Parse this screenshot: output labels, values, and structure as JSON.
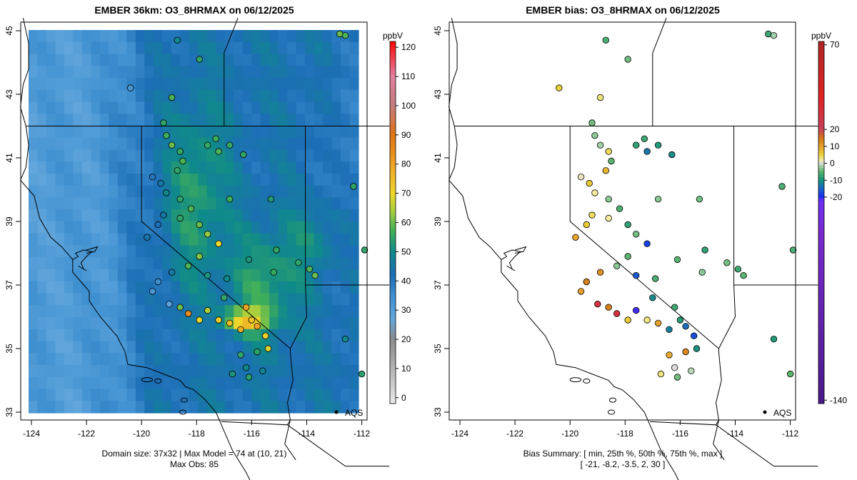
{
  "chart_data": [
    {
      "type": "map",
      "title": "EMBER 36km: O3_8HRMAX on 06/12/2025",
      "xticks": [
        "-124",
        "-122",
        "-120",
        "-118",
        "-116",
        "-114",
        "-112"
      ],
      "yticks": [
        "33",
        "35",
        "37",
        "39",
        "41",
        "43",
        "45"
      ],
      "xlim": [
        -124.3,
        -111.7
      ],
      "ylim": [
        32.8,
        45.3
      ],
      "colorbar": {
        "unit": "ppbV",
        "range": [
          -2,
          122
        ],
        "ticks": [
          "0",
          "10",
          "20",
          "30",
          "40",
          "50",
          "60",
          "70",
          "80",
          "90",
          "100",
          "110",
          "120"
        ]
      },
      "footer": [
        "Domain size: 37x32 | Max Model = 74 at (10, 21)",
        "Max Obs: 85"
      ],
      "domain_size": "37x32",
      "max_model": 74,
      "max_model_cell": [
        10,
        21
      ],
      "max_obs": 85,
      "aqs_label": "AQS",
      "obs_sites": [
        {
          "lon": -118.7,
          "lat": 44.7,
          "v": 50
        },
        {
          "lon": -117.9,
          "lat": 44.1,
          "v": 55
        },
        {
          "lon": -120.4,
          "lat": 43.2,
          "v": 32
        },
        {
          "lon": -119.2,
          "lat": 42.1,
          "v": 55
        },
        {
          "lon": -118.9,
          "lat": 42.9,
          "v": 58
        },
        {
          "lon": -119.1,
          "lat": 41.7,
          "v": 57
        },
        {
          "lon": -118.9,
          "lat": 41.4,
          "v": 60
        },
        {
          "lon": -118.6,
          "lat": 41.2,
          "v": 56
        },
        {
          "lon": -118.5,
          "lat": 40.9,
          "v": 58
        },
        {
          "lon": -118.7,
          "lat": 40.6,
          "v": 55
        },
        {
          "lon": -119.6,
          "lat": 40.4,
          "v": 40
        },
        {
          "lon": -119.3,
          "lat": 40.2,
          "v": 45
        },
        {
          "lon": -119.1,
          "lat": 39.9,
          "v": 50
        },
        {
          "lon": -118.6,
          "lat": 39.7,
          "v": 55
        },
        {
          "lon": -118.2,
          "lat": 39.4,
          "v": 58
        },
        {
          "lon": -117.9,
          "lat": 38.9,
          "v": 60
        },
        {
          "lon": -117.6,
          "lat": 38.6,
          "v": 63
        },
        {
          "lon": -117.2,
          "lat": 38.3,
          "v": 70
        },
        {
          "lon": -117.9,
          "lat": 37.9,
          "v": 62
        },
        {
          "lon": -118.3,
          "lat": 37.6,
          "v": 58
        },
        {
          "lon": -118.9,
          "lat": 37.4,
          "v": 45
        },
        {
          "lon": -119.4,
          "lat": 37.1,
          "v": 35
        },
        {
          "lon": -119.6,
          "lat": 36.8,
          "v": 32
        },
        {
          "lon": -119.0,
          "lat": 36.4,
          "v": 28
        },
        {
          "lon": -118.6,
          "lat": 36.3,
          "v": 60
        },
        {
          "lon": -118.3,
          "lat": 36.1,
          "v": 85
        },
        {
          "lon": -117.9,
          "lat": 35.9,
          "v": 70
        },
        {
          "lon": -117.6,
          "lat": 36.2,
          "v": 65
        },
        {
          "lon": -117.2,
          "lat": 35.9,
          "v": 72
        },
        {
          "lon": -116.8,
          "lat": 35.8,
          "v": 75
        },
        {
          "lon": -116.4,
          "lat": 35.6,
          "v": 78
        },
        {
          "lon": -116.0,
          "lat": 35.9,
          "v": 74
        },
        {
          "lon": -115.8,
          "lat": 35.7,
          "v": 80
        },
        {
          "lon": -115.5,
          "lat": 35.4,
          "v": 72
        },
        {
          "lon": -115.4,
          "lat": 35.0,
          "v": 68
        },
        {
          "lon": -115.8,
          "lat": 34.9,
          "v": 55
        },
        {
          "lon": -116.4,
          "lat": 34.8,
          "v": 55
        },
        {
          "lon": -116.2,
          "lat": 34.4,
          "v": 50
        },
        {
          "lon": -115.6,
          "lat": 34.3,
          "v": 48
        },
        {
          "lon": -116.7,
          "lat": 34.2,
          "v": 52
        },
        {
          "lon": -116.1,
          "lat": 34.1,
          "v": 54
        },
        {
          "lon": -116.2,
          "lat": 36.3,
          "v": 80
        },
        {
          "lon": -117.0,
          "lat": 36.6,
          "v": 55
        },
        {
          "lon": -116.9,
          "lat": 37.2,
          "v": 50
        },
        {
          "lon": -116.1,
          "lat": 37.8,
          "v": 52
        },
        {
          "lon": -117.6,
          "lat": 37.3,
          "v": 52
        },
        {
          "lon": -117.3,
          "lat": 41.6,
          "v": 57
        },
        {
          "lon": -117.2,
          "lat": 41.2,
          "v": 58
        },
        {
          "lon": -117.6,
          "lat": 41.4,
          "v": 56
        },
        {
          "lon": -116.8,
          "lat": 41.4,
          "v": 56
        },
        {
          "lon": -116.3,
          "lat": 41.1,
          "v": 55
        },
        {
          "lon": -115.2,
          "lat": 37.4,
          "v": 56
        },
        {
          "lon": -113.9,
          "lat": 37.5,
          "v": 58
        },
        {
          "lon": -113.7,
          "lat": 37.3,
          "v": 60
        },
        {
          "lon": -114.3,
          "lat": 37.7,
          "v": 55
        },
        {
          "lon": -112.8,
          "lat": 44.9,
          "v": 60
        },
        {
          "lon": -112.6,
          "lat": 44.85,
          "v": 58
        },
        {
          "lon": -112.3,
          "lat": 40.1,
          "v": 55
        },
        {
          "lon": -111.9,
          "lat": 38.1,
          "v": 55
        },
        {
          "lon": -112.0,
          "lat": 34.2,
          "v": 54
        },
        {
          "lon": -112.6,
          "lat": 35.3,
          "v": 50
        },
        {
          "lon": -119.8,
          "lat": 38.5,
          "v": 44
        },
        {
          "lon": -119.4,
          "lat": 38.9,
          "v": 42
        },
        {
          "lon": -119.2,
          "lat": 39.2,
          "v": 45
        },
        {
          "lon": -115.1,
          "lat": 38.1,
          "v": 55
        },
        {
          "lon": -118.6,
          "lat": 39.1,
          "v": 55
        },
        {
          "lon": -116.8,
          "lat": 39.7,
          "v": 57
        },
        {
          "lon": -115.3,
          "lat": 39.7,
          "v": 53
        }
      ]
    },
    {
      "type": "map",
      "title": "EMBER bias: O3_8HRMAX on 06/12/2025",
      "xticks": [
        "-124",
        "-122",
        "-120",
        "-118",
        "-116",
        "-114",
        "-112"
      ],
      "yticks": [
        "33",
        "35",
        "37",
        "39",
        "41",
        "43",
        "45"
      ],
      "xlim": [
        -124.3,
        -111.7
      ],
      "ylim": [
        32.8,
        45.3
      ],
      "colorbar": {
        "unit": "ppbV",
        "range": [
          -142,
          72
        ],
        "ticks": [
          "-140",
          "-20",
          "-10",
          "0",
          "10",
          "20",
          "70"
        ]
      },
      "footer": [
        "Bias Summary: [ min, 25th %, 50th %, 75th %, max ]",
        "[ -21,   -8.2,   -3.5,   2,   30 ]"
      ],
      "bias_summary": {
        "min": -21,
        "p25": -8.2,
        "p50": -3.5,
        "p75": 2,
        "max": 30
      },
      "aqs_label": "AQS",
      "obs_sites": [
        {
          "lon": -118.7,
          "lat": 44.7,
          "b": -6
        },
        {
          "lon": -117.9,
          "lat": 44.1,
          "b": -4
        },
        {
          "lon": -120.4,
          "lat": 43.2,
          "b": 5
        },
        {
          "lon": -119.2,
          "lat": 42.1,
          "b": -4
        },
        {
          "lon": -118.9,
          "lat": 42.9,
          "b": 3
        },
        {
          "lon": -119.1,
          "lat": 41.7,
          "b": -3
        },
        {
          "lon": -118.9,
          "lat": 41.4,
          "b": -2
        },
        {
          "lon": -118.6,
          "lat": 41.2,
          "b": 4
        },
        {
          "lon": -118.5,
          "lat": 40.9,
          "b": -5
        },
        {
          "lon": -118.7,
          "lat": 40.6,
          "b": 8
        },
        {
          "lon": -119.6,
          "lat": 40.4,
          "b": 1
        },
        {
          "lon": -119.3,
          "lat": 40.2,
          "b": 6
        },
        {
          "lon": -119.1,
          "lat": 39.9,
          "b": 2
        },
        {
          "lon": -118.6,
          "lat": 39.7,
          "b": -3
        },
        {
          "lon": -118.2,
          "lat": 39.4,
          "b": -6
        },
        {
          "lon": -117.9,
          "lat": 38.9,
          "b": -8
        },
        {
          "lon": -117.6,
          "lat": 38.6,
          "b": -4
        },
        {
          "lon": -117.2,
          "lat": 38.3,
          "b": -18
        },
        {
          "lon": -117.9,
          "lat": 37.9,
          "b": -5
        },
        {
          "lon": -118.3,
          "lat": 37.6,
          "b": -3
        },
        {
          "lon": -118.9,
          "lat": 37.4,
          "b": 12
        },
        {
          "lon": -119.4,
          "lat": 37.1,
          "b": 14
        },
        {
          "lon": -119.6,
          "lat": 36.8,
          "b": 10
        },
        {
          "lon": -119.0,
          "lat": 36.4,
          "b": 28
        },
        {
          "lon": -118.6,
          "lat": 36.3,
          "b": 14
        },
        {
          "lon": -118.3,
          "lat": 36.1,
          "b": 30
        },
        {
          "lon": -117.9,
          "lat": 35.9,
          "b": 6
        },
        {
          "lon": -117.6,
          "lat": 36.2,
          "b": -21
        },
        {
          "lon": -117.2,
          "lat": 35.9,
          "b": 3
        },
        {
          "lon": -116.8,
          "lat": 35.8,
          "b": 10
        },
        {
          "lon": -116.4,
          "lat": 35.6,
          "b": -12
        },
        {
          "lon": -116.0,
          "lat": 35.9,
          "b": -9
        },
        {
          "lon": -115.8,
          "lat": 35.7,
          "b": -14
        },
        {
          "lon": -115.5,
          "lat": 35.4,
          "b": -17
        },
        {
          "lon": -115.4,
          "lat": 35.0,
          "b": -10
        },
        {
          "lon": -115.8,
          "lat": 34.9,
          "b": 13
        },
        {
          "lon": -116.4,
          "lat": 34.8,
          "b": 9
        },
        {
          "lon": -116.2,
          "lat": 34.4,
          "b": 0
        },
        {
          "lon": -115.6,
          "lat": 34.3,
          "b": -1
        },
        {
          "lon": -116.7,
          "lat": 34.2,
          "b": 3
        },
        {
          "lon": -116.1,
          "lat": 34.1,
          "b": -4
        },
        {
          "lon": -116.2,
          "lat": 36.3,
          "b": -7
        },
        {
          "lon": -117.0,
          "lat": 36.6,
          "b": -11
        },
        {
          "lon": -116.9,
          "lat": 37.2,
          "b": -6
        },
        {
          "lon": -116.1,
          "lat": 37.8,
          "b": -5
        },
        {
          "lon": -117.6,
          "lat": 37.3,
          "b": -16
        },
        {
          "lon": -117.3,
          "lat": 41.6,
          "b": -7
        },
        {
          "lon": -117.2,
          "lat": 41.2,
          "b": -13
        },
        {
          "lon": -117.6,
          "lat": 41.4,
          "b": -8
        },
        {
          "lon": -116.8,
          "lat": 41.4,
          "b": -9
        },
        {
          "lon": -116.3,
          "lat": 41.1,
          "b": -11
        },
        {
          "lon": -115.2,
          "lat": 37.4,
          "b": -3
        },
        {
          "lon": -113.9,
          "lat": 37.5,
          "b": -7
        },
        {
          "lon": -113.7,
          "lat": 37.3,
          "b": -5
        },
        {
          "lon": -114.3,
          "lat": 37.7,
          "b": -4
        },
        {
          "lon": -112.8,
          "lat": 44.9,
          "b": -7
        },
        {
          "lon": -112.6,
          "lat": 44.85,
          "b": -2
        },
        {
          "lon": -112.3,
          "lat": 40.1,
          "b": -6
        },
        {
          "lon": -111.9,
          "lat": 38.1,
          "b": -6
        },
        {
          "lon": -112.0,
          "lat": 34.2,
          "b": -5
        },
        {
          "lon": -112.6,
          "lat": 35.3,
          "b": -9
        },
        {
          "lon": -119.8,
          "lat": 38.5,
          "b": 10
        },
        {
          "lon": -119.4,
          "lat": 38.9,
          "b": 6
        },
        {
          "lon": -119.2,
          "lat": 39.2,
          "b": 4
        },
        {
          "lon": -115.1,
          "lat": 38.1,
          "b": -8
        },
        {
          "lon": -118.6,
          "lat": 39.1,
          "b": 2
        },
        {
          "lon": -116.8,
          "lat": 39.7,
          "b": -3
        },
        {
          "lon": -115.3,
          "lat": 39.7,
          "b": -4
        }
      ]
    }
  ]
}
